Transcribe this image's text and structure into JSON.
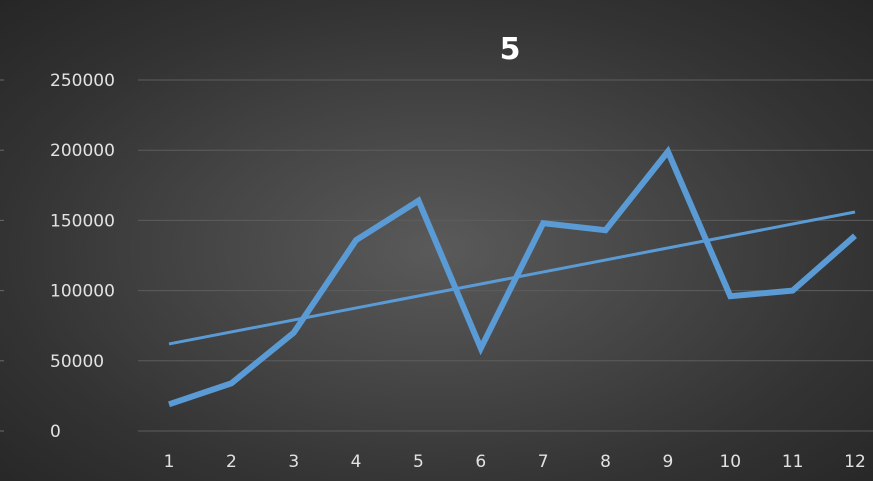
{
  "chart_data": {
    "type": "line",
    "title": "5",
    "xlabel": "",
    "ylabel": "",
    "categories": [
      "1",
      "2",
      "3",
      "4",
      "5",
      "6",
      "7",
      "8",
      "9",
      "10",
      "11",
      "12"
    ],
    "series": [
      {
        "values": [
          19000,
          34000,
          70000,
          136000,
          164000,
          59000,
          148000,
          143000,
          199000,
          96000,
          100000,
          139000
        ]
      }
    ],
    "trendline": {
      "type": "linear",
      "start": 62000,
      "end": 156000
    },
    "ylim": [
      0,
      250000
    ],
    "yticks": [
      0,
      50000,
      100000,
      150000,
      200000,
      250000
    ],
    "grid": true,
    "legend": "none",
    "colors": {
      "series": "#5b9bd5",
      "text": "#e2e2e2",
      "title": "#ffffff",
      "grid": "#5d5d5d"
    }
  }
}
